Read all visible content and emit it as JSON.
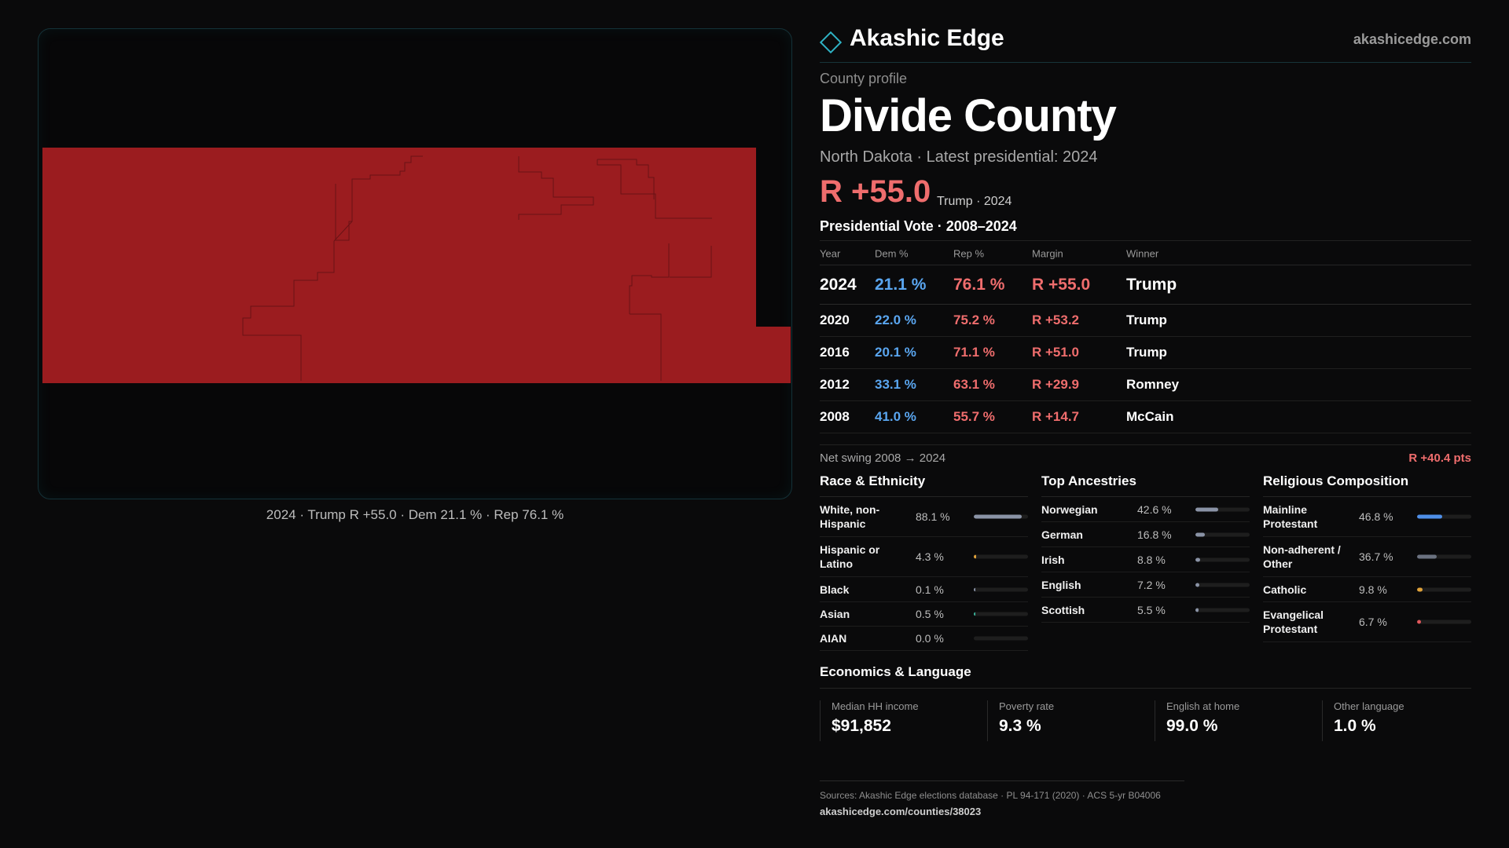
{
  "brand": {
    "name": "Akashic Edge",
    "site": "akashicedge.com"
  },
  "profile": {
    "eyebrow": "County profile",
    "title": "Divide County",
    "subtitle": "North Dakota · Latest presidential: 2024",
    "margin": "R +55.0",
    "margin_note": "Trump · 2024"
  },
  "map": {
    "caption": "2024 · Trump R +55.0 · Dem 21.1 % · Rep 76.1 %",
    "fill_color": "#9b1c1f",
    "border_color": "#6a1215"
  },
  "vote": {
    "heading": "Presidential Vote · 2008–2024",
    "columns": [
      "Year",
      "Dem %",
      "Rep %",
      "Margin",
      "Winner"
    ],
    "rows": [
      {
        "year": "2024",
        "dem": "21.1 %",
        "rep": "76.1 %",
        "margin": "R +55.0",
        "winner": "Trump"
      },
      {
        "year": "2020",
        "dem": "22.0 %",
        "rep": "75.2 %",
        "margin": "R +53.2",
        "winner": "Trump"
      },
      {
        "year": "2016",
        "dem": "20.1 %",
        "rep": "71.1 %",
        "margin": "R +51.0",
        "winner": "Trump"
      },
      {
        "year": "2012",
        "dem": "33.1 %",
        "rep": "63.1 %",
        "margin": "R +29.9",
        "winner": "Romney"
      },
      {
        "year": "2008",
        "dem": "41.0 %",
        "rep": "55.7 %",
        "margin": "R +14.7",
        "winner": "McCain"
      }
    ],
    "swing_label": "Net swing 2008 → 2024",
    "swing_value": "R +40.4 pts"
  },
  "race": {
    "title": "Race & Ethnicity",
    "items": [
      {
        "label": "White, non-Hispanic",
        "pct": "88.1 %",
        "share": 0.881,
        "color": "#8a93a6"
      },
      {
        "label": "Hispanic or Latino",
        "pct": "4.3 %",
        "share": 0.043,
        "color": "#e0a23a"
      },
      {
        "label": "Black",
        "pct": "0.1 %",
        "share": 0.001,
        "color": "#8a93a6"
      },
      {
        "label": "Asian",
        "pct": "0.5 %",
        "share": 0.005,
        "color": "#3ab39a"
      },
      {
        "label": "AIAN",
        "pct": "0.0 %",
        "share": 0.0,
        "color": "#8a93a6"
      }
    ]
  },
  "ancestry": {
    "title": "Top Ancestries",
    "items": [
      {
        "label": "Norwegian",
        "pct": "42.6 %",
        "share": 0.426,
        "color": "#8a93a6"
      },
      {
        "label": "German",
        "pct": "16.8 %",
        "share": 0.168,
        "color": "#8a93a6"
      },
      {
        "label": "Irish",
        "pct": "8.8 %",
        "share": 0.088,
        "color": "#8a93a6"
      },
      {
        "label": "English",
        "pct": "7.2 %",
        "share": 0.072,
        "color": "#8a93a6"
      },
      {
        "label": "Scottish",
        "pct": "5.5 %",
        "share": 0.055,
        "color": "#8a93a6"
      }
    ]
  },
  "religion": {
    "title": "Religious Composition",
    "items": [
      {
        "label": "Mainline Protestant",
        "pct": "46.8 %",
        "share": 0.468,
        "color": "#4f8fe8"
      },
      {
        "label": "Non-adherent / Other",
        "pct": "36.7 %",
        "share": 0.367,
        "color": "#6b7280"
      },
      {
        "label": "Catholic",
        "pct": "9.8 %",
        "share": 0.098,
        "color": "#e0a23a"
      },
      {
        "label": "Evangelical Protestant",
        "pct": "6.7 %",
        "share": 0.067,
        "color": "#e0575b"
      }
    ]
  },
  "economics": {
    "title": "Economics & Language",
    "items": [
      {
        "label": "Median HH income",
        "value": "$91,852"
      },
      {
        "label": "Poverty rate",
        "value": "9.3 %"
      },
      {
        "label": "English at home",
        "value": "99.0 %"
      },
      {
        "label": "Other language",
        "value": "1.0 %"
      }
    ]
  },
  "footer": {
    "sources": "Sources: Akashic Edge elections database · PL 94-171 (2020) · ACS 5-yr B04006",
    "url": "akashicedge.com/counties/38023"
  }
}
